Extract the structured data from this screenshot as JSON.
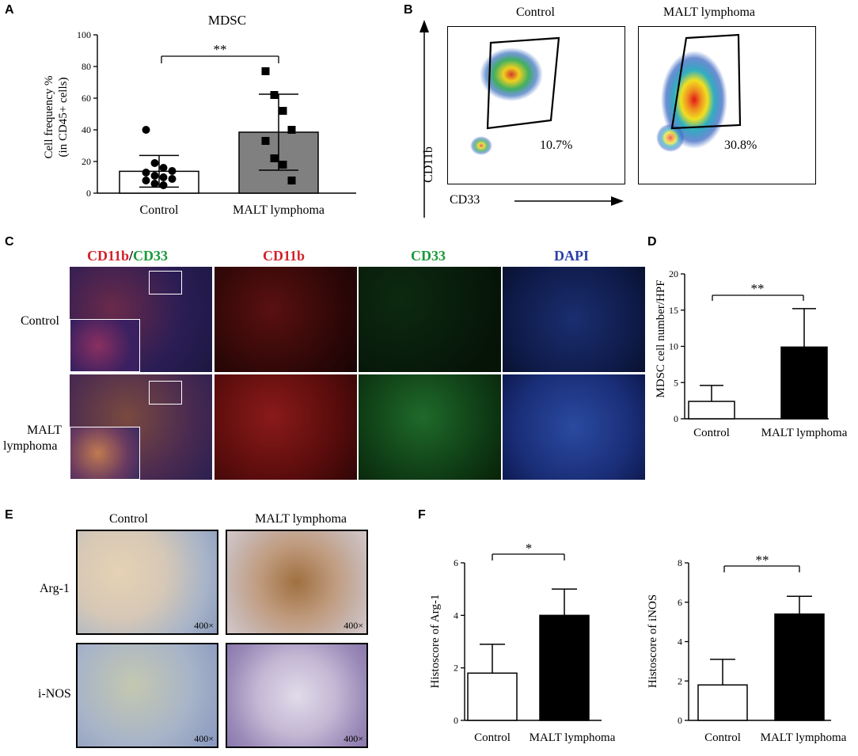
{
  "panels": {
    "A": {
      "label": "A",
      "title": "MDSC",
      "ylabel_line1": "Cell frequency %",
      "ylabel_line2": "(in CD45+ cells)",
      "sig": "**",
      "yticks": [
        "0",
        "20",
        "40",
        "60",
        "80",
        "100"
      ],
      "categories": [
        "Control",
        "MALT lymphoma"
      ]
    },
    "B": {
      "label": "B",
      "plots": [
        {
          "title": "Control",
          "percent": "10.7%"
        },
        {
          "title": "MALT lymphoma",
          "percent": "30.8%"
        }
      ],
      "yaxis": "CD11b",
      "xaxis": "CD33"
    },
    "C": {
      "label": "C",
      "headers": {
        "merge_a": "CD11b",
        "merge_sep": "/",
        "merge_b": "CD33",
        "cd11b": "CD11b",
        "cd33": "CD33",
        "dapi": "DAPI"
      },
      "rows": [
        "Control",
        "MALT\nlymphoma"
      ],
      "row_line1": [
        "Control",
        "MALT"
      ],
      "row_line2": [
        "",
        "lymphoma"
      ]
    },
    "D": {
      "label": "D",
      "ylabel": "MDSC cell number/HPF",
      "sig": "**",
      "yticks": [
        "0",
        "5",
        "10",
        "15",
        "20"
      ],
      "categories": [
        "Control",
        "MALT lymphoma"
      ]
    },
    "E": {
      "label": "E",
      "cols": [
        "Control",
        "MALT lymphoma"
      ],
      "rows": [
        "Arg-1",
        "i-NOS"
      ],
      "magnification": "400×"
    },
    "F": {
      "label": "F",
      "left": {
        "ylabel": "Histoscore of Arg-1",
        "sig": "*",
        "yticks": [
          "0",
          "2",
          "4",
          "6"
        ],
        "categories": [
          "Control",
          "MALT lymphoma"
        ]
      },
      "right": {
        "ylabel": "Histoscore of iNOS",
        "sig": "**",
        "yticks": [
          "0",
          "2",
          "4",
          "6",
          "8"
        ],
        "categories": [
          "Control",
          "MALT lymphoma"
        ]
      }
    }
  },
  "chart_data": [
    {
      "id": "A",
      "type": "bar",
      "title": "MDSC",
      "categories": [
        "Control",
        "MALT lymphoma"
      ],
      "values": [
        13.8,
        38.5
      ],
      "error": [
        10,
        24
      ],
      "points": [
        [
          40,
          19,
          16,
          14,
          13,
          11,
          10,
          9,
          8,
          6,
          5
        ],
        [
          77,
          62,
          52,
          40,
          33,
          22,
          18,
          8
        ]
      ],
      "ylim": [
        0,
        100
      ],
      "ylabel": "Cell frequency % (in CD45+ cells)",
      "bar_colors": [
        "#ffffff",
        "#808080"
      ]
    },
    {
      "id": "D",
      "type": "bar",
      "categories": [
        "Control",
        "MALT lymphoma"
      ],
      "values": [
        2.4,
        9.9
      ],
      "error": [
        2.2,
        5.3
      ],
      "ylim": [
        0,
        20
      ],
      "ylabel": "MDSC cell number/HPF",
      "bar_colors": [
        "#ffffff",
        "#000000"
      ]
    },
    {
      "id": "F-left",
      "type": "bar",
      "categories": [
        "Control",
        "MALT lymphoma"
      ],
      "values": [
        1.8,
        4.0
      ],
      "error": [
        1.1,
        1.0
      ],
      "ylim": [
        0,
        6
      ],
      "ylabel": "Histoscore of Arg-1",
      "bar_colors": [
        "#ffffff",
        "#000000"
      ]
    },
    {
      "id": "F-right",
      "type": "bar",
      "categories": [
        "Control",
        "MALT lymphoma"
      ],
      "values": [
        1.8,
        5.4
      ],
      "error": [
        1.3,
        0.9
      ],
      "ylim": [
        0,
        8
      ],
      "ylabel": "Histoscore of iNOS",
      "bar_colors": [
        "#ffffff",
        "#000000"
      ]
    }
  ]
}
